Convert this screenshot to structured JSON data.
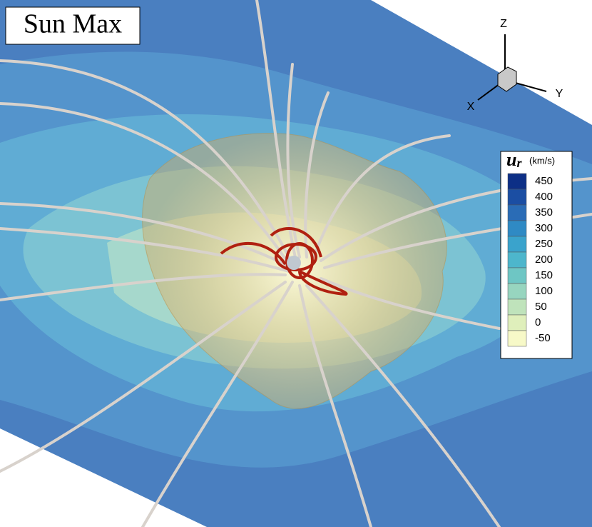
{
  "title": "Sun Max",
  "axes": {
    "z": "Z",
    "x": "X",
    "y": "Y"
  },
  "colorbar": {
    "variable": "u",
    "subscript": "r",
    "unit": "(km/s)",
    "levels": [
      450,
      400,
      350,
      300,
      250,
      200,
      150,
      100,
      50,
      0,
      -50
    ],
    "colors": [
      "#0d2f86",
      "#1b4ea3",
      "#2a6cb6",
      "#2f8ac4",
      "#3aa3cc",
      "#4db6cc",
      "#6ec6c4",
      "#97d5bf",
      "#bfe3bb",
      "#dfefbb",
      "#f7f9c8"
    ]
  }
}
